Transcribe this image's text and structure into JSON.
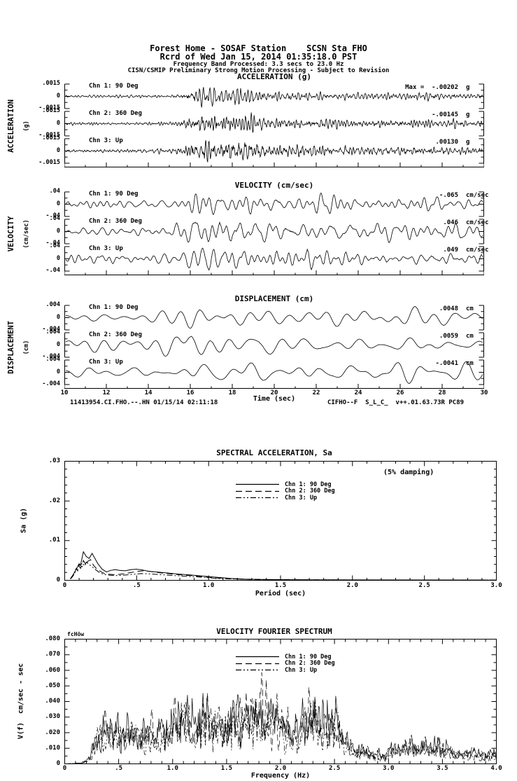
{
  "header": {
    "line1": "Forest Home - SOSAF Station    SCSN Sta FHO",
    "line2": "Rcrd of Wed Jan 15, 2014 01:35:18.0 PST",
    "line3": "Frequency Band Processed: 3.3 secs to 23.0 Hz",
    "line4": "CISN/CSMIP Preliminary Strong Motion Processing - Subject to Revision"
  },
  "footer": {
    "left": "11413954.CI.FHO.--.HN 01/15/14 02:11:18",
    "right": "CIFHO--F  S_L_C_  v++.01.63.73R PC89"
  },
  "chart_data": [
    {
      "id": "acceleration",
      "type": "line",
      "kind": "time-series",
      "title": "ACCELERATION (g)",
      "side_label": "ACCELERATION",
      "side_unit": "(g)",
      "x_range": [
        10,
        30
      ],
      "ylim": [
        -0.0015,
        0.0015
      ],
      "ytick_labels": [
        ".0015",
        "0",
        "-.0015"
      ],
      "channels": [
        {
          "label": "Chn 1: 90 Deg",
          "max_text": "Max =  -.00202",
          "max_value": -0.00202,
          "unit": "g"
        },
        {
          "label": "Chn 2: 360 Deg",
          "max_text": "-.00145",
          "max_value": -0.00145,
          "unit": "g"
        },
        {
          "label": "Chn 3: Up",
          "max_text": ".00130",
          "max_value": 0.0013,
          "unit": "g"
        }
      ],
      "gen": {
        "seeds": [
          11,
          12,
          13
        ],
        "freq_band": [
          3,
          9
        ],
        "points": 900,
        "noise": 0.8,
        "envelope": [
          [
            10,
            0.12
          ],
          [
            15,
            0.14
          ],
          [
            15.6,
            0.35
          ],
          [
            16.3,
            1.0
          ],
          [
            17.2,
            0.9
          ],
          [
            18.5,
            0.75
          ],
          [
            20,
            0.5
          ],
          [
            22,
            0.42
          ],
          [
            24,
            0.36
          ],
          [
            26,
            0.33
          ],
          [
            28,
            0.3
          ],
          [
            30,
            0.28
          ]
        ]
      }
    },
    {
      "id": "velocity",
      "type": "line",
      "kind": "time-series",
      "title": "VELOCITY (cm/sec)",
      "side_label": "VELOCITY",
      "side_unit": "(cm/sec)",
      "x_range": [
        10,
        30
      ],
      "ylim": [
        -0.04,
        0.04
      ],
      "ytick_labels": [
        ".04",
        "0",
        "-.04"
      ],
      "channels": [
        {
          "label": "Chn 1: 90 Deg",
          "max_text": "-.065",
          "max_value": -0.065,
          "unit": "cm/sec"
        },
        {
          "label": "Chn 2: 360 Deg",
          "max_text": ".046",
          "max_value": 0.046,
          "unit": "cm/sec"
        },
        {
          "label": "Chn 3: Up",
          "max_text": ".049",
          "max_value": 0.049,
          "unit": "cm/sec"
        }
      ],
      "gen": {
        "seeds": [
          21,
          22,
          23
        ],
        "freq_band": [
          0.8,
          3.5
        ],
        "points": 700,
        "noise": 0.15,
        "envelope": [
          [
            10,
            0.3
          ],
          [
            13,
            0.35
          ],
          [
            15.5,
            0.45
          ],
          [
            16.5,
            1.0
          ],
          [
            18,
            0.8
          ],
          [
            20,
            0.7
          ],
          [
            22,
            0.65
          ],
          [
            24,
            0.6
          ],
          [
            26,
            0.55
          ],
          [
            28,
            0.5
          ],
          [
            30,
            0.45
          ]
        ]
      }
    },
    {
      "id": "displacement",
      "type": "line",
      "kind": "time-series",
      "title": "DISPLACEMENT (cm)",
      "side_label": "DISPLACEMENT",
      "side_unit": "(cm)",
      "xlabel": "Time (sec)",
      "x_range": [
        10,
        30
      ],
      "xtick_labels": [
        "10",
        "12",
        "14",
        "16",
        "18",
        "20",
        "22",
        "24",
        "26",
        "28",
        "30"
      ],
      "ylim": [
        -0.004,
        0.004
      ],
      "ytick_labels": [
        ".004",
        "0",
        "-.004"
      ],
      "channels": [
        {
          "label": "Chn 1: 90 Deg",
          "max_text": ".0048",
          "max_value": 0.0048,
          "unit": "cm"
        },
        {
          "label": "Chn 2: 360 Deg",
          "max_text": ".0059",
          "max_value": 0.0059,
          "unit": "cm"
        },
        {
          "label": "Chn 3: Up",
          "max_text": "-.0041",
          "max_value": -0.0041,
          "unit": "cm"
        }
      ],
      "gen": {
        "seeds": [
          31,
          32,
          33
        ],
        "freq_band": [
          0.35,
          1.3
        ],
        "points": 500,
        "noise": 0.05,
        "envelope": [
          [
            10,
            0.4
          ],
          [
            11.5,
            0.55
          ],
          [
            13,
            0.45
          ],
          [
            15.3,
            0.75
          ],
          [
            16,
            1.0
          ],
          [
            17,
            0.85
          ],
          [
            18.5,
            0.8
          ],
          [
            20,
            0.65
          ],
          [
            22,
            0.7
          ],
          [
            24,
            0.65
          ],
          [
            26,
            0.75
          ],
          [
            28,
            0.65
          ],
          [
            30,
            0.55
          ]
        ]
      }
    },
    {
      "id": "spectral-acceleration",
      "type": "line",
      "title": "SPECTRAL ACCELERATION, Sa",
      "annotation": "(5% damping)",
      "xlabel": "Period (sec)",
      "ylabel": "Sa (g)",
      "xlim": [
        0,
        3.0
      ],
      "ylim": [
        0,
        0.03
      ],
      "xtick_labels": [
        "0",
        ".5",
        "1.0",
        "1.5",
        "2.0",
        "2.5",
        "3.0"
      ],
      "ytick_labels": [
        ".03",
        ".02",
        ".01",
        "0"
      ],
      "legend_position": "inside-top-center",
      "series": [
        {
          "name": "Chn 1: 90 Deg",
          "style": "solid",
          "points": [
            [
              0.04,
              0.0004
            ],
            [
              0.06,
              0.0015
            ],
            [
              0.08,
              0.0028
            ],
            [
              0.1,
              0.0042
            ],
            [
              0.11,
              0.0038
            ],
            [
              0.13,
              0.0072
            ],
            [
              0.15,
              0.006
            ],
            [
              0.17,
              0.0055
            ],
            [
              0.19,
              0.0068
            ],
            [
              0.21,
              0.0055
            ],
            [
              0.23,
              0.0042
            ],
            [
              0.26,
              0.0028
            ],
            [
              0.29,
              0.0021
            ],
            [
              0.32,
              0.0025
            ],
            [
              0.35,
              0.0027
            ],
            [
              0.38,
              0.0025
            ],
            [
              0.42,
              0.0024
            ],
            [
              0.46,
              0.0027
            ],
            [
              0.5,
              0.0028
            ],
            [
              0.54,
              0.0026
            ],
            [
              0.58,
              0.0023
            ],
            [
              0.64,
              0.0021
            ],
            [
              0.7,
              0.0019
            ],
            [
              0.78,
              0.0016
            ],
            [
              0.86,
              0.0014
            ],
            [
              0.95,
              0.0011
            ],
            [
              1.05,
              0.0008
            ],
            [
              1.15,
              0.0005
            ],
            [
              1.25,
              0.0003
            ],
            [
              1.4,
              0.0002
            ],
            [
              1.6,
              0.00015
            ],
            [
              1.8,
              0.0001
            ],
            [
              2.0,
              0.0001
            ],
            [
              2.5,
              8e-05
            ],
            [
              3.0,
              6e-05
            ]
          ]
        },
        {
          "name": "Chn 2: 360 Deg",
          "style": "dashed",
          "points": [
            [
              0.04,
              0.0004
            ],
            [
              0.06,
              0.0014
            ],
            [
              0.08,
              0.003
            ],
            [
              0.09,
              0.0024
            ],
            [
              0.1,
              0.004
            ],
            [
              0.12,
              0.0034
            ],
            [
              0.13,
              0.005
            ],
            [
              0.15,
              0.0038
            ],
            [
              0.16,
              0.0048
            ],
            [
              0.18,
              0.0052
            ],
            [
              0.2,
              0.0038
            ],
            [
              0.22,
              0.003
            ],
            [
              0.25,
              0.0022
            ],
            [
              0.28,
              0.0016
            ],
            [
              0.32,
              0.0015
            ],
            [
              0.36,
              0.0014
            ],
            [
              0.4,
              0.0016
            ],
            [
              0.45,
              0.0019
            ],
            [
              0.5,
              0.0022
            ],
            [
              0.55,
              0.0024
            ],
            [
              0.6,
              0.0022
            ],
            [
              0.66,
              0.0019
            ],
            [
              0.72,
              0.0017
            ],
            [
              0.8,
              0.0014
            ],
            [
              0.88,
              0.0012
            ],
            [
              0.96,
              0.0009
            ],
            [
              1.05,
              0.0006
            ],
            [
              1.15,
              0.0004
            ],
            [
              1.3,
              0.0002
            ],
            [
              1.5,
              0.00015
            ],
            [
              1.8,
              0.0001
            ],
            [
              2.2,
              8e-05
            ],
            [
              3.0,
              6e-05
            ]
          ]
        },
        {
          "name": "Chn 3: Up",
          "style": "dash-dot-dot",
          "points": [
            [
              0.04,
              0.0003
            ],
            [
              0.06,
              0.0012
            ],
            [
              0.08,
              0.0026
            ],
            [
              0.1,
              0.0036
            ],
            [
              0.11,
              0.003
            ],
            [
              0.12,
              0.0044
            ],
            [
              0.14,
              0.0036
            ],
            [
              0.15,
              0.0046
            ],
            [
              0.17,
              0.004
            ],
            [
              0.19,
              0.0034
            ],
            [
              0.21,
              0.0028
            ],
            [
              0.24,
              0.002
            ],
            [
              0.27,
              0.0015
            ],
            [
              0.31,
              0.0013
            ],
            [
              0.36,
              0.0012
            ],
            [
              0.41,
              0.0013
            ],
            [
              0.47,
              0.0015
            ],
            [
              0.53,
              0.0017
            ],
            [
              0.6,
              0.0016
            ],
            [
              0.68,
              0.0014
            ],
            [
              0.76,
              0.0012
            ],
            [
              0.85,
              0.001
            ],
            [
              0.95,
              0.0008
            ],
            [
              1.05,
              0.0005
            ],
            [
              1.2,
              0.0003
            ],
            [
              1.4,
              0.0002
            ],
            [
              1.7,
              0.0001
            ],
            [
              2.2,
              8e-05
            ],
            [
              3.0,
              5e-05
            ]
          ]
        }
      ]
    },
    {
      "id": "velocity-fourier-spectrum",
      "type": "line",
      "title": "VELOCITY FOURIER SPECTRUM",
      "corner_label": "fcHöw",
      "xlabel": "Frequency (Hz)",
      "ylabel": "V(f)  cm/sec - sec",
      "xlim": [
        0,
        4.0
      ],
      "ylim": [
        0,
        0.08
      ],
      "xtick_labels": [
        "0",
        ".5",
        "1.0",
        "1.5",
        "2.0",
        "2.5",
        "3.0",
        "3.5",
        "4.0"
      ],
      "ytick_labels": [
        ".080",
        ".070",
        ".060",
        ".050",
        ".040",
        ".030",
        ".020",
        ".010",
        "0"
      ],
      "legend_position": "inside-top-center",
      "series": [
        {
          "name": "Chn 1: 90 Deg",
          "style": "solid"
        },
        {
          "name": "Chn 2: 360 Deg",
          "style": "dashed"
        },
        {
          "name": "Chn 3: Up",
          "style": "dash-dot-dot"
        }
      ],
      "gen": {
        "seeds": [
          41,
          42,
          43
        ],
        "scales": [
          1.0,
          0.93,
          0.8
        ],
        "envelope": [
          [
            0,
            0
          ],
          [
            0.15,
            0.001
          ],
          [
            0.2,
            0.004
          ],
          [
            0.25,
            0.015
          ],
          [
            0.3,
            0.035
          ],
          [
            0.4,
            0.045
          ],
          [
            0.5,
            0.04
          ],
          [
            0.6,
            0.045
          ],
          [
            0.7,
            0.04
          ],
          [
            0.8,
            0.04
          ],
          [
            0.9,
            0.038
          ],
          [
            1.0,
            0.055
          ],
          [
            1.1,
            0.068
          ],
          [
            1.2,
            0.05
          ],
          [
            1.3,
            0.065
          ],
          [
            1.4,
            0.05
          ],
          [
            1.55,
            0.062
          ],
          [
            1.65,
            0.055
          ],
          [
            1.75,
            0.072
          ],
          [
            1.85,
            0.065
          ],
          [
            1.95,
            0.06
          ],
          [
            2.1,
            0.045
          ],
          [
            2.2,
            0.05
          ],
          [
            2.3,
            0.062
          ],
          [
            2.4,
            0.05
          ],
          [
            2.5,
            0.06
          ],
          [
            2.6,
            0.03
          ],
          [
            2.7,
            0.018
          ],
          [
            2.8,
            0.015
          ],
          [
            2.9,
            0.012
          ],
          [
            3.0,
            0.015
          ],
          [
            3.1,
            0.018
          ],
          [
            3.2,
            0.025
          ],
          [
            3.3,
            0.022
          ],
          [
            3.4,
            0.02
          ],
          [
            3.5,
            0.025
          ],
          [
            3.6,
            0.015
          ],
          [
            3.7,
            0.012
          ],
          [
            3.8,
            0.015
          ],
          [
            3.9,
            0.012
          ],
          [
            4.0,
            0.013
          ]
        ]
      }
    }
  ]
}
